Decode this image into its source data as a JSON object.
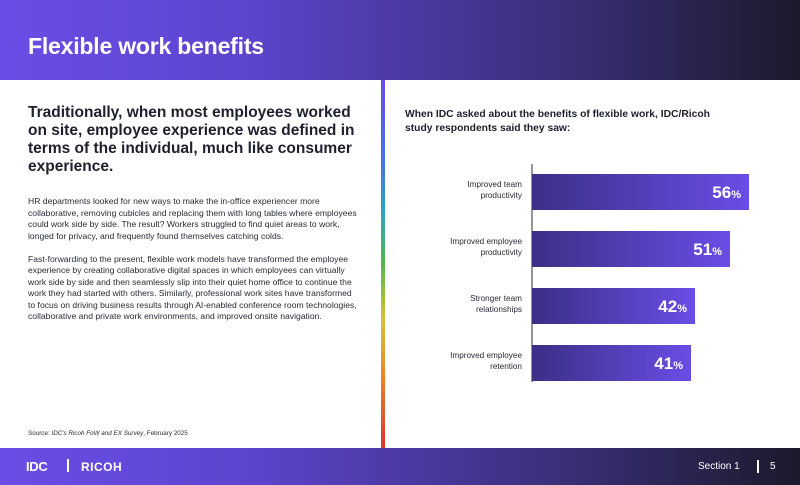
{
  "header": {
    "title": "Flexible work benefits"
  },
  "left": {
    "heading": "Traditionally, when most employees worked on site, employee experience was defined in terms of the individual, much like consumer experience.",
    "paragraphs": [
      "HR departments looked for new ways to make the in-office experiencer more collaborative, removing cubicles and replacing them with long tables where employees could work side by side. The result? Workers struggled to find quiet areas to work, longed for privacy, and frequently found themselves catching colds.",
      "Fast-forwarding to the present, flexible work models have transformed the employee experience by creating collaborative digital spaces in which employees can virtually work side by side and then seamlessly slip into their quiet home office to continue the work they had started with others. Similarly, professional work sites have transformed to focus on driving business results through AI-enabled conference room technologies, collaborative and private work environments, and improved onsite navigation."
    ],
    "source_prefix": "Source: ",
    "source_text": "IDC's Ricoh FoW and EX Survey",
    "source_suffix": ", February 2025"
  },
  "chart_data": {
    "type": "bar",
    "orientation": "horizontal",
    "title": "When IDC asked about the benefits of flexible work, IDC/Ricoh study respondents said they saw:",
    "categories": [
      [
        "Improved team",
        "productivity"
      ],
      [
        "Improved employee",
        "productivity"
      ],
      [
        "Stronger team",
        "relationships"
      ],
      [
        "Improved employee",
        "retention"
      ]
    ],
    "values": [
      56,
      51,
      42,
      41
    ],
    "unit": "%",
    "xlim": [
      0,
      60
    ],
    "grid": false,
    "bar_colors": [
      "#3b2f86",
      "#6a4de6"
    ]
  },
  "footer": {
    "logo_idc": "IDC",
    "logo_ricoh": "RICOH",
    "section": "Section 1",
    "page": "5"
  }
}
